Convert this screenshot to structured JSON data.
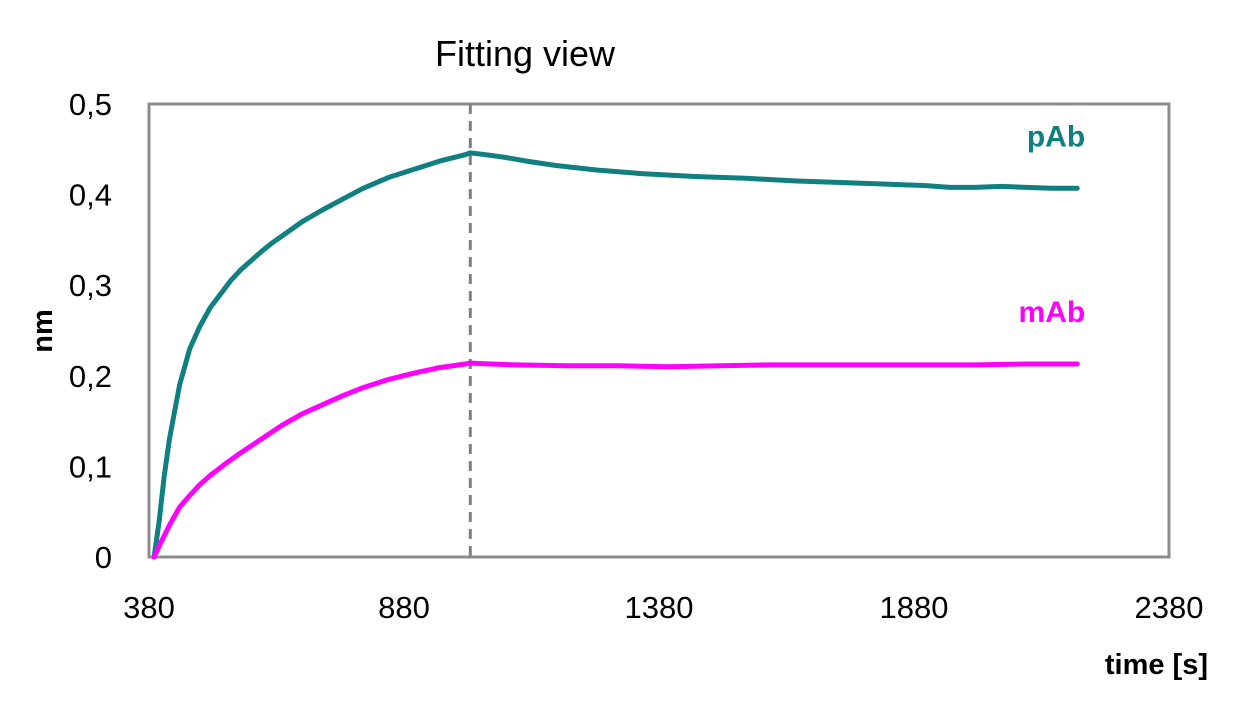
{
  "chart_data": {
    "type": "line",
    "title": "Fitting view",
    "xlabel": "time [s]",
    "ylabel": "nm",
    "xlim": [
      380,
      2380
    ],
    "ylim": [
      0,
      0.5
    ],
    "x_ticks": [
      380,
      880,
      1380,
      1880,
      2380
    ],
    "x_tick_labels": [
      "380",
      "880",
      "1380",
      "1880",
      "2380"
    ],
    "y_ticks": [
      0,
      0.1,
      0.2,
      0.3,
      0.4,
      0.5
    ],
    "y_tick_labels": [
      "0",
      "0,1",
      "0,2",
      "0,3",
      "0,4",
      "0,5"
    ],
    "grid": false,
    "legend": "inline labels at right end of each series",
    "vertical_marker_x": 1010,
    "series": [
      {
        "name": "pAb",
        "color": "#0f7f7f",
        "x": [
          390,
          400,
          410,
          420,
          440,
          460,
          480,
          500,
          520,
          540,
          560,
          580,
          600,
          620,
          650,
          680,
          720,
          760,
          800,
          850,
          900,
          950,
          1000,
          1010,
          1040,
          1080,
          1120,
          1180,
          1260,
          1350,
          1450,
          1550,
          1650,
          1750,
          1850,
          1900,
          1950,
          2000,
          2050,
          2100,
          2150,
          2200
        ],
        "y": [
          0.0,
          0.04,
          0.09,
          0.13,
          0.19,
          0.23,
          0.255,
          0.275,
          0.29,
          0.305,
          0.317,
          0.327,
          0.337,
          0.346,
          0.358,
          0.37,
          0.383,
          0.395,
          0.407,
          0.419,
          0.428,
          0.437,
          0.444,
          0.446,
          0.444,
          0.441,
          0.437,
          0.432,
          0.427,
          0.423,
          0.42,
          0.418,
          0.415,
          0.413,
          0.411,
          0.41,
          0.408,
          0.408,
          0.409,
          0.408,
          0.407,
          0.407
        ]
      },
      {
        "name": "mAb",
        "color": "#ff00ff",
        "x": [
          390,
          400,
          420,
          440,
          460,
          480,
          500,
          530,
          560,
          600,
          640,
          680,
          720,
          760,
          800,
          850,
          900,
          950,
          1000,
          1010,
          1050,
          1100,
          1200,
          1300,
          1400,
          1500,
          1600,
          1700,
          1800,
          1900,
          2000,
          2100,
          2200
        ],
        "y": [
          0.0,
          0.012,
          0.035,
          0.055,
          0.068,
          0.08,
          0.09,
          0.103,
          0.115,
          0.13,
          0.145,
          0.158,
          0.168,
          0.178,
          0.187,
          0.196,
          0.203,
          0.209,
          0.213,
          0.214,
          0.213,
          0.212,
          0.211,
          0.211,
          0.21,
          0.211,
          0.212,
          0.212,
          0.212,
          0.212,
          0.212,
          0.213,
          0.213
        ]
      }
    ]
  }
}
